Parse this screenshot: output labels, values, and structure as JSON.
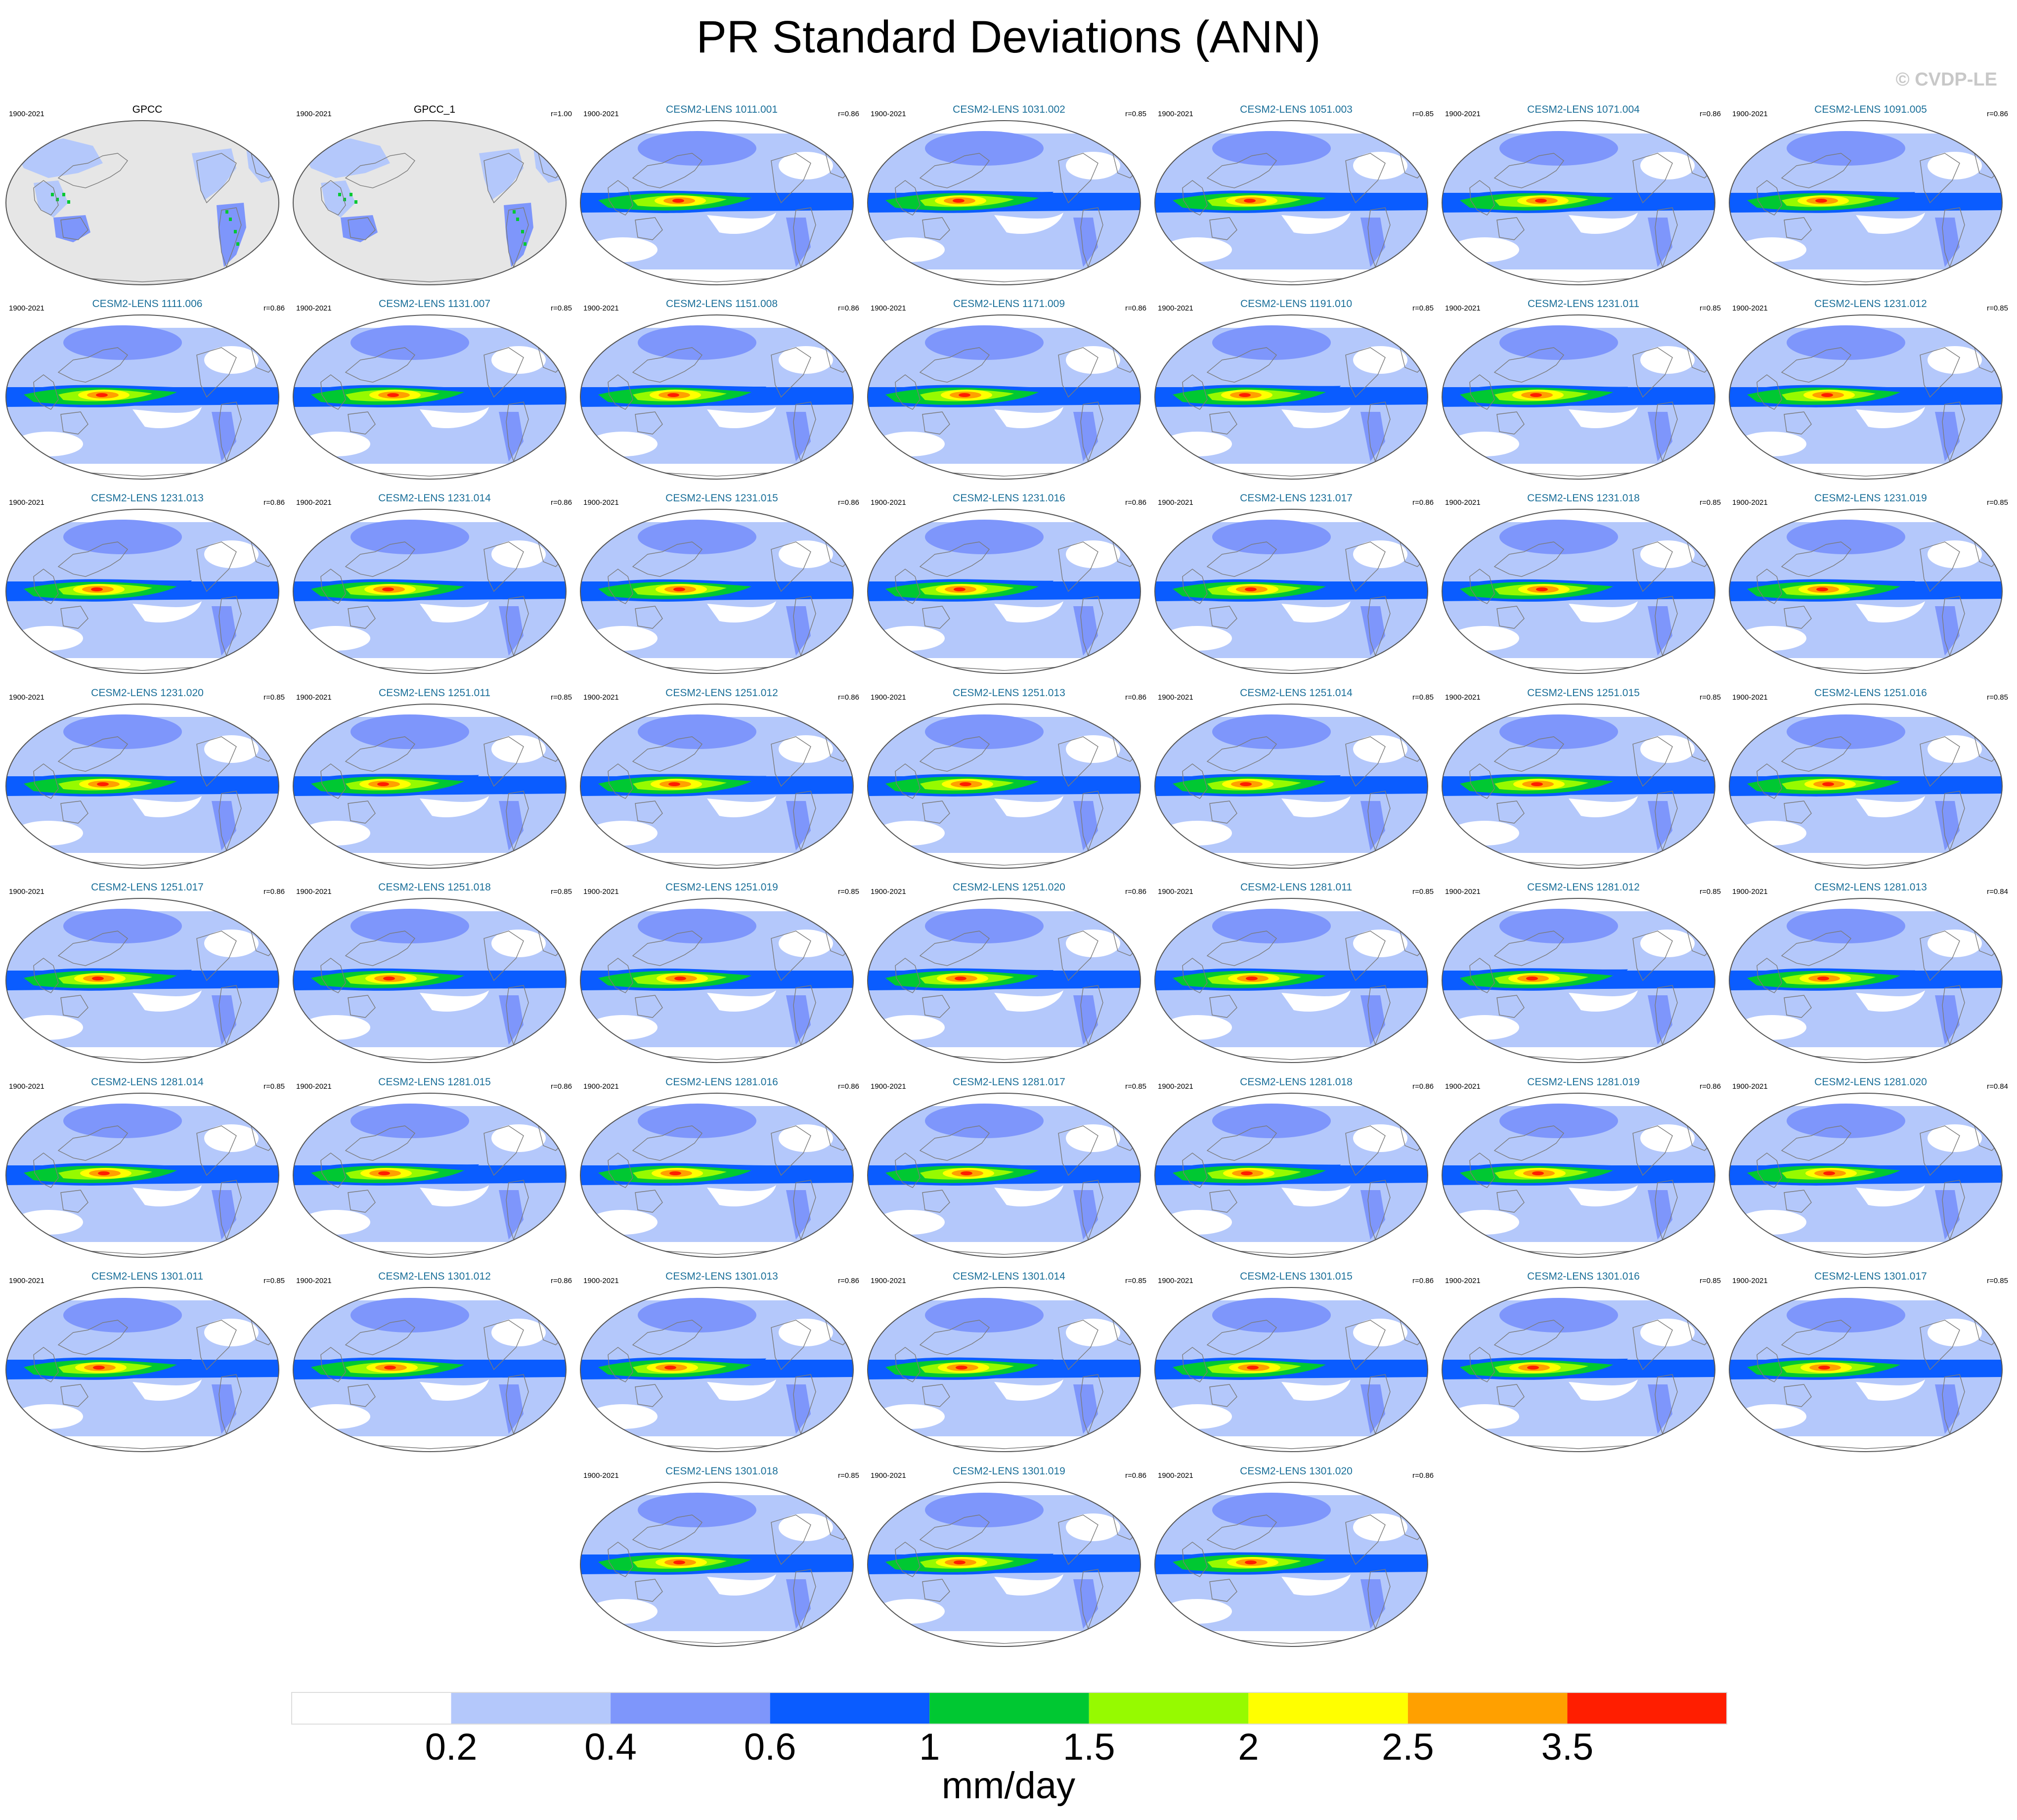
{
  "title": "PR Standard Deviations (ANN)",
  "watermark": "© CVDP-LE",
  "period": "1900-2021",
  "colors": {
    "ocean_background": "#e6e6e6",
    "levels": [
      "#ffffff",
      "#b4c8fb",
      "#7e96fb",
      "#0a5cff",
      "#00c832",
      "#96fa00",
      "#ffff00",
      "#ffa000",
      "#ff1e00"
    ]
  },
  "colorbar": {
    "labels": [
      "0.2",
      "0.4",
      "0.6",
      "1",
      "1.5",
      "2",
      "2.5",
      "3.5"
    ],
    "units": "mm/day"
  },
  "panels": [
    {
      "title": "GPCC",
      "r": "",
      "type": "obs"
    },
    {
      "title": "GPCC_1",
      "r": "r=1.00",
      "type": "obs"
    },
    {
      "title": "CESM2-LENS 1011.001",
      "r": "r=0.86",
      "type": "model"
    },
    {
      "title": "CESM2-LENS 1031.002",
      "r": "r=0.85",
      "type": "model"
    },
    {
      "title": "CESM2-LENS 1051.003",
      "r": "r=0.85",
      "type": "model"
    },
    {
      "title": "CESM2-LENS 1071.004",
      "r": "r=0.86",
      "type": "model"
    },
    {
      "title": "CESM2-LENS 1091.005",
      "r": "r=0.86",
      "type": "model"
    },
    {
      "title": "CESM2-LENS 1111.006",
      "r": "r=0.86",
      "type": "model"
    },
    {
      "title": "CESM2-LENS 1131.007",
      "r": "r=0.85",
      "type": "model"
    },
    {
      "title": "CESM2-LENS 1151.008",
      "r": "r=0.86",
      "type": "model"
    },
    {
      "title": "CESM2-LENS 1171.009",
      "r": "r=0.86",
      "type": "model"
    },
    {
      "title": "CESM2-LENS 1191.010",
      "r": "r=0.85",
      "type": "model"
    },
    {
      "title": "CESM2-LENS 1231.011",
      "r": "r=0.85",
      "type": "model"
    },
    {
      "title": "CESM2-LENS 1231.012",
      "r": "r=0.85",
      "type": "model"
    },
    {
      "title": "CESM2-LENS 1231.013",
      "r": "r=0.86",
      "type": "model"
    },
    {
      "title": "CESM2-LENS 1231.014",
      "r": "r=0.86",
      "type": "model"
    },
    {
      "title": "CESM2-LENS 1231.015",
      "r": "r=0.86",
      "type": "model"
    },
    {
      "title": "CESM2-LENS 1231.016",
      "r": "r=0.86",
      "type": "model"
    },
    {
      "title": "CESM2-LENS 1231.017",
      "r": "r=0.86",
      "type": "model"
    },
    {
      "title": "CESM2-LENS 1231.018",
      "r": "r=0.85",
      "type": "model"
    },
    {
      "title": "CESM2-LENS 1231.019",
      "r": "r=0.85",
      "type": "model"
    },
    {
      "title": "CESM2-LENS 1231.020",
      "r": "r=0.85",
      "type": "model"
    },
    {
      "title": "CESM2-LENS 1251.011",
      "r": "r=0.85",
      "type": "model"
    },
    {
      "title": "CESM2-LENS 1251.012",
      "r": "r=0.86",
      "type": "model"
    },
    {
      "title": "CESM2-LENS 1251.013",
      "r": "r=0.86",
      "type": "model"
    },
    {
      "title": "CESM2-LENS 1251.014",
      "r": "r=0.85",
      "type": "model"
    },
    {
      "title": "CESM2-LENS 1251.015",
      "r": "r=0.85",
      "type": "model"
    },
    {
      "title": "CESM2-LENS 1251.016",
      "r": "r=0.85",
      "type": "model"
    },
    {
      "title": "CESM2-LENS 1251.017",
      "r": "r=0.86",
      "type": "model"
    },
    {
      "title": "CESM2-LENS 1251.018",
      "r": "r=0.85",
      "type": "model"
    },
    {
      "title": "CESM2-LENS 1251.019",
      "r": "r=0.85",
      "type": "model"
    },
    {
      "title": "CESM2-LENS 1251.020",
      "r": "r=0.86",
      "type": "model"
    },
    {
      "title": "CESM2-LENS 1281.011",
      "r": "r=0.85",
      "type": "model"
    },
    {
      "title": "CESM2-LENS 1281.012",
      "r": "r=0.85",
      "type": "model"
    },
    {
      "title": "CESM2-LENS 1281.013",
      "r": "r=0.84",
      "type": "model"
    },
    {
      "title": "CESM2-LENS 1281.014",
      "r": "r=0.85",
      "type": "model"
    },
    {
      "title": "CESM2-LENS 1281.015",
      "r": "r=0.86",
      "type": "model"
    },
    {
      "title": "CESM2-LENS 1281.016",
      "r": "r=0.86",
      "type": "model"
    },
    {
      "title": "CESM2-LENS 1281.017",
      "r": "r=0.85",
      "type": "model"
    },
    {
      "title": "CESM2-LENS 1281.018",
      "r": "r=0.86",
      "type": "model"
    },
    {
      "title": "CESM2-LENS 1281.019",
      "r": "r=0.86",
      "type": "model"
    },
    {
      "title": "CESM2-LENS 1281.020",
      "r": "r=0.84",
      "type": "model"
    },
    {
      "title": "CESM2-LENS 1301.011",
      "r": "r=0.85",
      "type": "model"
    },
    {
      "title": "CESM2-LENS 1301.012",
      "r": "r=0.86",
      "type": "model"
    },
    {
      "title": "CESM2-LENS 1301.013",
      "r": "r=0.86",
      "type": "model"
    },
    {
      "title": "CESM2-LENS 1301.014",
      "r": "r=0.85",
      "type": "model"
    },
    {
      "title": "CESM2-LENS 1301.015",
      "r": "r=0.86",
      "type": "model"
    },
    {
      "title": "CESM2-LENS 1301.016",
      "r": "r=0.85",
      "type": "model"
    },
    {
      "title": "CESM2-LENS 1301.017",
      "r": "r=0.85",
      "type": "model"
    },
    {
      "title": "CESM2-LENS 1301.018",
      "r": "r=0.85",
      "type": "model"
    },
    {
      "title": "CESM2-LENS 1301.019",
      "r": "r=0.86",
      "type": "model"
    },
    {
      "title": "CESM2-LENS 1301.020",
      "r": "r=0.86",
      "type": "model"
    }
  ]
}
